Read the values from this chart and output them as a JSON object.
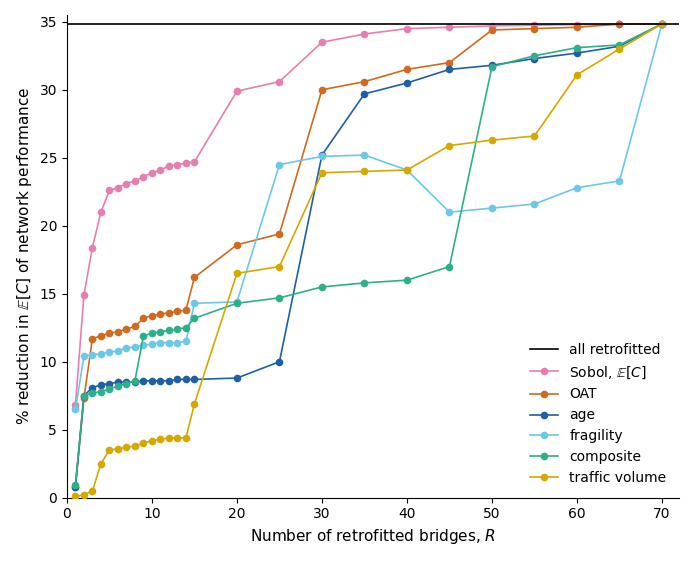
{
  "xlabel": "Number of retrofitted bridges, $R$",
  "ylabel": "% reduction in $\\mathbb{E}[C]$ of network performance",
  "xlim": [
    0,
    72
  ],
  "ylim": [
    0,
    35.5
  ],
  "yticks": [
    0,
    5,
    10,
    15,
    20,
    25,
    30,
    35
  ],
  "xticks": [
    0,
    10,
    20,
    30,
    40,
    50,
    60,
    70
  ],
  "all_retrofitted_y": 34.85,
  "series": {
    "sobol": {
      "label": "Sobol, $\\mathbb{E}[C]$",
      "color": "#e87eb0",
      "x": [
        1,
        2,
        3,
        4,
        5,
        6,
        7,
        8,
        9,
        10,
        11,
        12,
        13,
        14,
        15,
        20,
        25,
        30,
        35,
        40,
        45,
        50,
        55,
        60,
        65,
        70
      ],
      "y": [
        6.8,
        14.9,
        18.4,
        21.0,
        22.6,
        22.8,
        23.1,
        23.3,
        23.6,
        23.9,
        24.1,
        24.4,
        24.5,
        24.6,
        24.7,
        29.9,
        30.6,
        33.5,
        34.1,
        34.5,
        34.6,
        34.7,
        34.75,
        34.8,
        34.83,
        34.85
      ]
    },
    "oat": {
      "label": "OAT",
      "color": "#d2691e",
      "x": [
        1,
        2,
        3,
        4,
        5,
        6,
        7,
        8,
        9,
        10,
        11,
        12,
        13,
        14,
        15,
        20,
        25,
        30,
        35,
        40,
        45,
        50,
        55,
        60,
        65,
        70
      ],
      "y": [
        0.8,
        7.3,
        11.7,
        11.9,
        12.1,
        12.2,
        12.4,
        12.6,
        13.2,
        13.4,
        13.5,
        13.6,
        13.7,
        13.8,
        16.2,
        18.6,
        19.4,
        30.0,
        30.6,
        31.5,
        32.0,
        34.4,
        34.5,
        34.6,
        34.83,
        34.85
      ]
    },
    "age": {
      "label": "age",
      "color": "#1f5fa6",
      "x": [
        1,
        2,
        3,
        4,
        5,
        6,
        7,
        8,
        9,
        10,
        11,
        12,
        13,
        14,
        15,
        20,
        25,
        30,
        35,
        40,
        45,
        50,
        55,
        60,
        65,
        70
      ],
      "y": [
        0.8,
        7.5,
        8.1,
        8.3,
        8.4,
        8.5,
        8.5,
        8.5,
        8.6,
        8.6,
        8.6,
        8.6,
        8.7,
        8.7,
        8.7,
        8.8,
        10.0,
        25.2,
        29.7,
        30.5,
        31.5,
        31.8,
        32.3,
        32.7,
        33.2,
        34.85
      ]
    },
    "fragility": {
      "label": "fragility",
      "color": "#6dc8e8",
      "x": [
        1,
        2,
        3,
        4,
        5,
        6,
        7,
        8,
        9,
        10,
        11,
        12,
        13,
        14,
        15,
        20,
        25,
        30,
        35,
        40,
        45,
        50,
        55,
        60,
        65,
        70
      ],
      "y": [
        6.5,
        10.4,
        10.5,
        10.6,
        10.7,
        10.8,
        11.0,
        11.1,
        11.2,
        11.3,
        11.4,
        11.4,
        11.4,
        11.5,
        14.3,
        14.4,
        24.5,
        25.1,
        25.2,
        24.1,
        21.0,
        21.3,
        21.6,
        22.8,
        23.3,
        34.85
      ]
    },
    "composite": {
      "label": "composite",
      "color": "#2eaf89",
      "x": [
        1,
        2,
        3,
        4,
        5,
        6,
        7,
        8,
        9,
        10,
        11,
        12,
        13,
        14,
        15,
        20,
        25,
        30,
        35,
        40,
        45,
        50,
        55,
        60,
        65,
        70
      ],
      "y": [
        0.9,
        7.5,
        7.7,
        7.8,
        8.0,
        8.2,
        8.4,
        8.6,
        11.9,
        12.1,
        12.2,
        12.3,
        12.4,
        12.5,
        13.2,
        14.3,
        14.7,
        15.5,
        15.8,
        16.0,
        17.0,
        31.7,
        32.5,
        33.1,
        33.3,
        34.85
      ]
    },
    "traffic": {
      "label": "traffic volume",
      "color": "#d4a800",
      "x": [
        1,
        2,
        3,
        4,
        5,
        6,
        7,
        8,
        9,
        10,
        11,
        12,
        13,
        14,
        15,
        20,
        25,
        30,
        35,
        40,
        45,
        50,
        55,
        60,
        65,
        70
      ],
      "y": [
        0.1,
        0.2,
        0.5,
        2.5,
        3.5,
        3.6,
        3.7,
        3.8,
        4.0,
        4.2,
        4.3,
        4.4,
        4.4,
        4.4,
        6.9,
        16.5,
        17.0,
        23.9,
        24.0,
        24.1,
        25.9,
        26.3,
        26.6,
        31.1,
        33.0,
        34.85
      ]
    }
  }
}
